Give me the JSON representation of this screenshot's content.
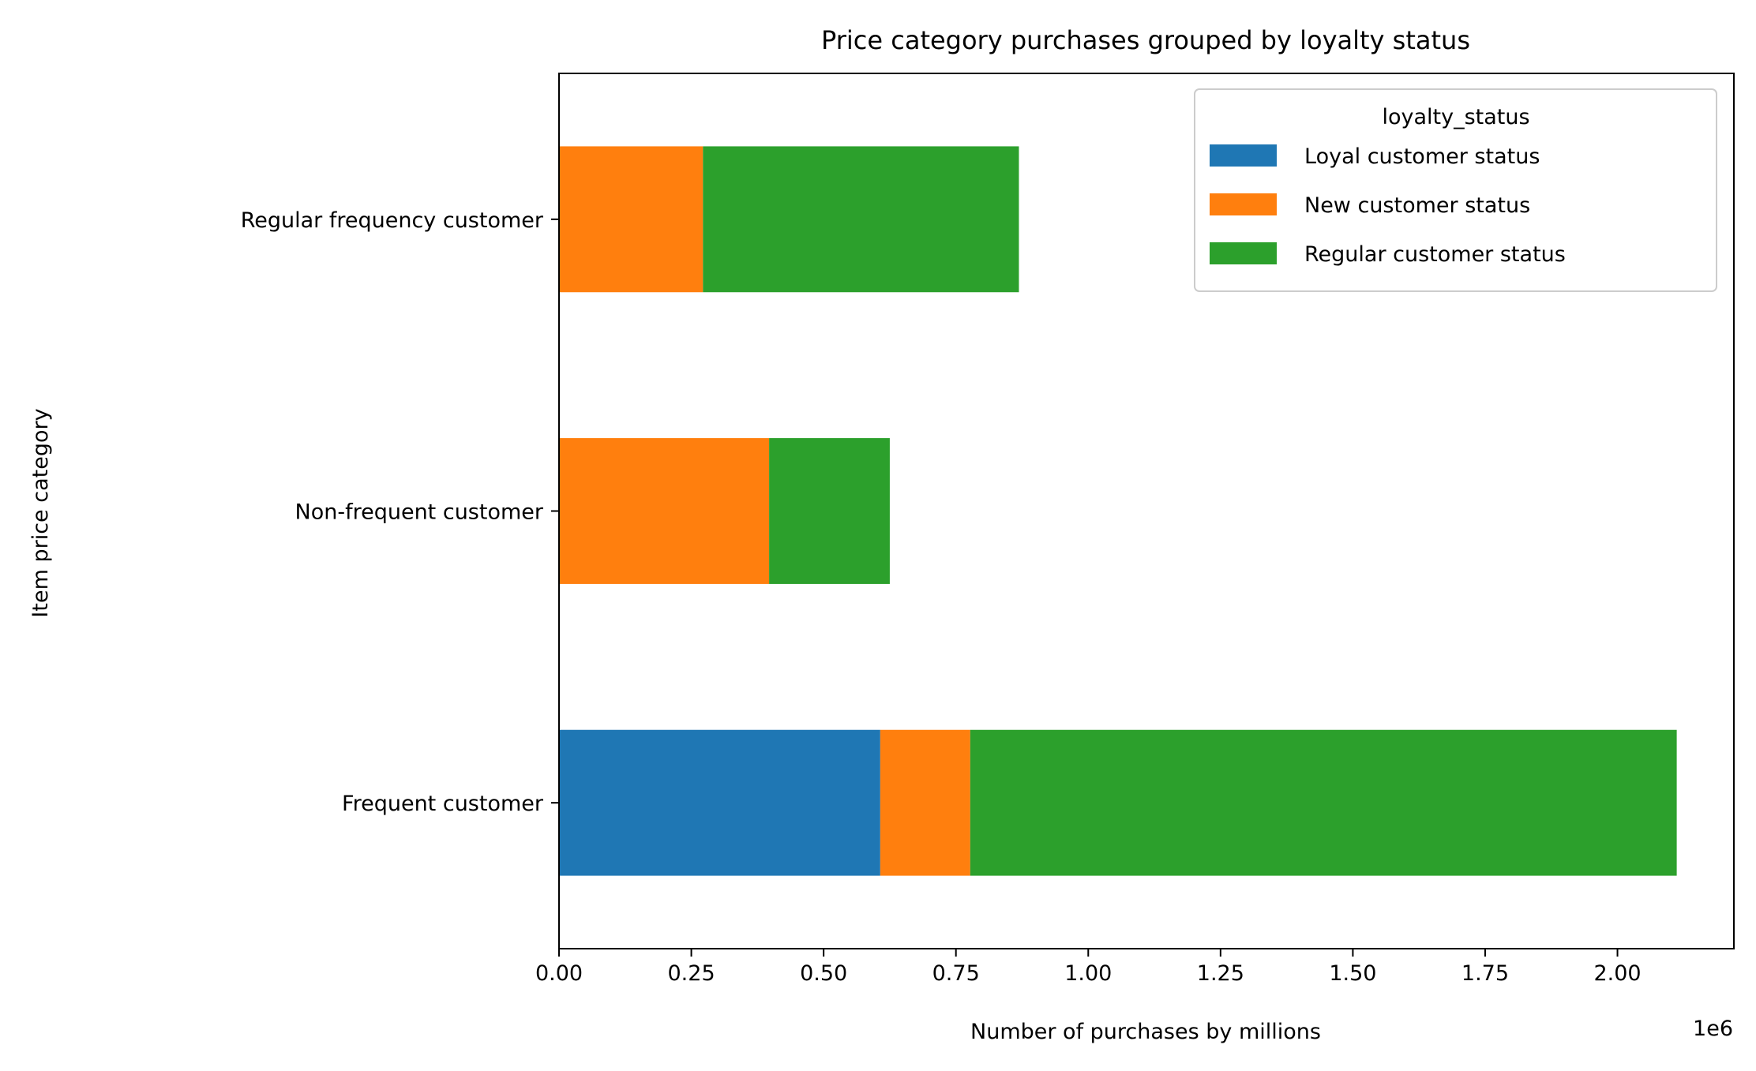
{
  "chart_data": {
    "type": "bar",
    "orientation": "horizontal",
    "stacked": true,
    "title": "Price category purchases grouped by loyalty status",
    "xlabel": "Number of purchases by millions",
    "ylabel": "Item price category",
    "x_offset_label": "1e6",
    "categories": [
      "Frequent customer",
      "Non-frequent customer",
      "Regular frequency customer"
    ],
    "series": [
      {
        "name": "Loyal customer status",
        "color": "#1f77b4",
        "values": [
          607000,
          0,
          0
        ]
      },
      {
        "name": "New customer status",
        "color": "#ff7f0e",
        "values": [
          170000,
          397000,
          272000
        ]
      },
      {
        "name": "Regular customer status",
        "color": "#2ca02c",
        "values": [
          1335000,
          228000,
          597000
        ]
      }
    ],
    "xlim": [
      0,
      2220000
    ],
    "xticks": [
      0,
      250000,
      500000,
      750000,
      1000000,
      1250000,
      1500000,
      1750000,
      2000000
    ],
    "xtick_labels": [
      "0.00",
      "0.25",
      "0.50",
      "0.75",
      "1.00",
      "1.25",
      "1.50",
      "1.75",
      "2.00"
    ],
    "grid": false,
    "legend": {
      "title": "loyalty_status",
      "placement": "top-right"
    }
  }
}
